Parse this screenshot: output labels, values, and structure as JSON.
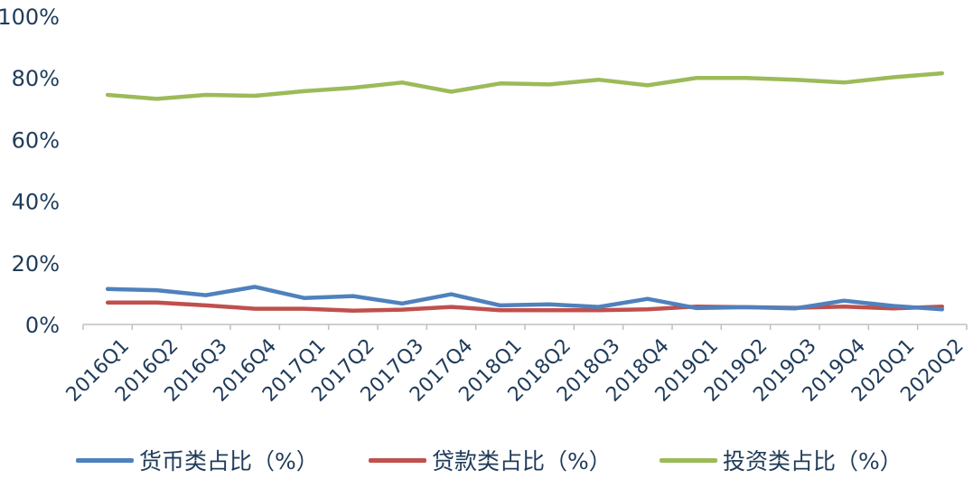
{
  "chart_data": {
    "type": "line",
    "title": "",
    "xlabel": "",
    "ylabel": "",
    "ylim": [
      0,
      100
    ],
    "yticks": [
      "0%",
      "20%",
      "40%",
      "60%",
      "80%",
      "100%"
    ],
    "ytick_values": [
      0,
      20,
      40,
      60,
      80,
      100
    ],
    "grid": false,
    "legend_position": "bottom",
    "categories": [
      "2016Q1",
      "2016Q2",
      "2016Q3",
      "2016Q4",
      "2017Q1",
      "2017Q2",
      "2017Q3",
      "2017Q4",
      "2018Q1",
      "2018Q2",
      "2018Q3",
      "2018Q4",
      "2019Q1",
      "2019Q2",
      "2019Q3",
      "2019Q4",
      "2020Q1",
      "2020Q2"
    ],
    "series": [
      {
        "name": "货币类占比（%）",
        "color": "#4f81bd",
        "values": [
          11.5,
          11.1,
          9.5,
          12.2,
          8.6,
          9.2,
          6.8,
          9.8,
          6.2,
          6.5,
          5.7,
          8.3,
          5.3,
          5.6,
          5.2,
          7.7,
          6.0,
          4.9
        ]
      },
      {
        "name": "贷款类占比（%）",
        "color": "#c0504d",
        "values": [
          7.1,
          7.1,
          6.2,
          5.1,
          5.1,
          4.5,
          4.8,
          5.7,
          4.6,
          4.6,
          4.6,
          4.9,
          5.8,
          5.6,
          5.4,
          5.8,
          5.2,
          5.8
        ]
      },
      {
        "name": "投资类占比（%）",
        "color": "#9bbb59",
        "values": [
          74.5,
          73.2,
          74.5,
          74.2,
          75.7,
          76.8,
          78.5,
          75.5,
          78.2,
          77.9,
          79.4,
          77.6,
          80.0,
          80.0,
          79.4,
          78.5,
          80.2,
          81.5
        ]
      }
    ]
  }
}
